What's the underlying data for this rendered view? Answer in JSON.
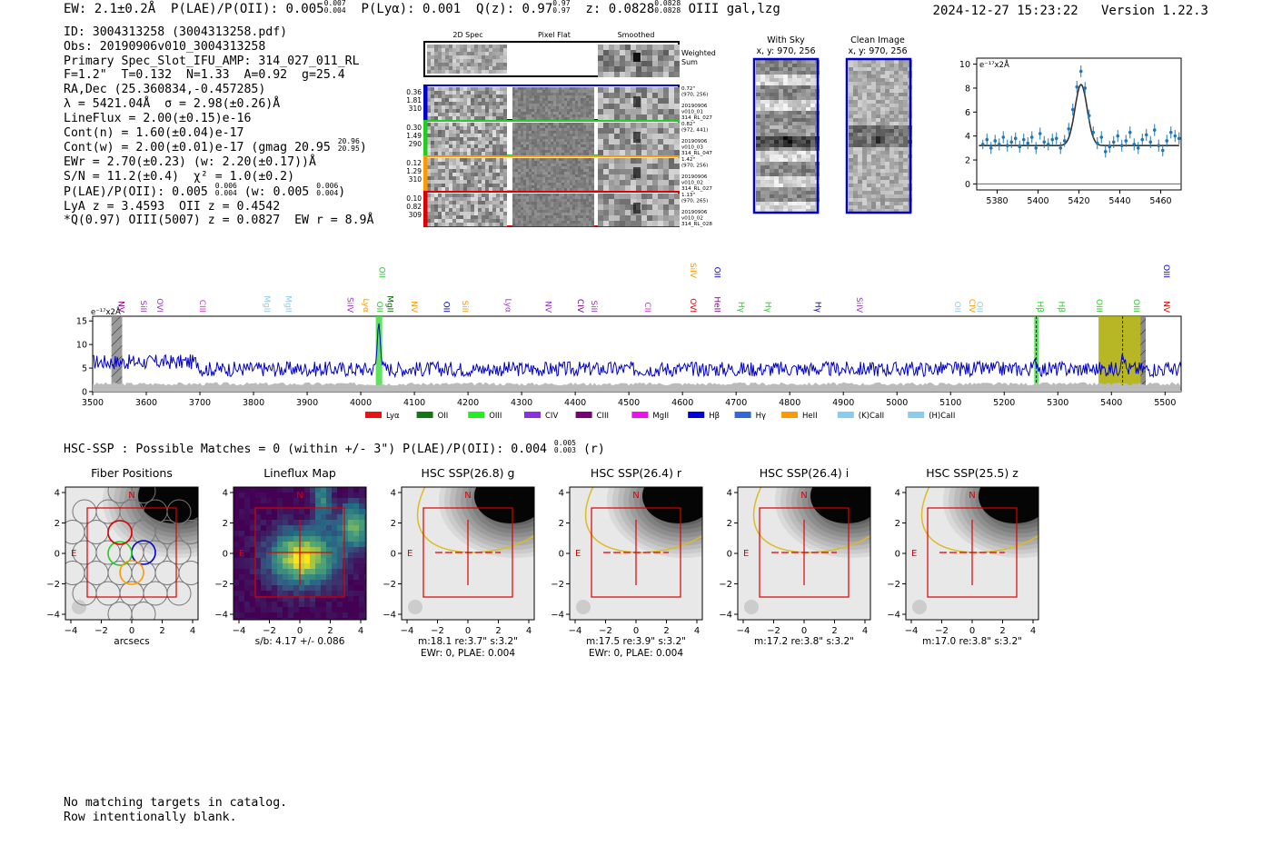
{
  "header": {
    "ew": "EW: 2.1±0.2Å",
    "plae_label": "P(LAE)/P(OII): 0.005",
    "plae_sup": "0.007",
    "plae_sub": "0.004",
    "plya": "P(Lyα): 0.001",
    "q_label": "Q(z): 0.97",
    "q_sup": "0.97",
    "q_sub": "0.97",
    "z_label": "z: 0.0828",
    "z_sup": "0.0828",
    "z_sub": "0.0828",
    "z_tail": "OIII  gal,lzg",
    "timestamp": "2024-12-27 15:23:22",
    "version": "Version 1.22.3"
  },
  "info": {
    "id": "ID: 3004313258 (3004313258.pdf)",
    "obs": "Obs: 20190906v010_3004313258",
    "primary": "Primary Spec_Slot_IFU_AMP: 314_027_011_RL",
    "fiber": "F=1.2\"  T=0.132  N=1.33  A=0.92  g=25.4",
    "radec": "RA,Dec (25.360834,-0.457285)",
    "lambda": "λ = 5421.04Å  σ = 2.98(±0.26)Å",
    "lineflux": "LineFlux = 2.00(±0.15)e-16",
    "contn": "Cont(n) = 1.60(±0.04)e-17",
    "contw": "Cont(w) = 2.00(±0.01)e-17 (gmag 20.95",
    "contw_sup": "20.96",
    "contw_sub": "20.95",
    "contw_tail": ")",
    "ewr": "EWr = 2.70(±0.23) (w: 2.20(±0.17))Å",
    "sn": "S/N = 11.2(±0.4)  χ² = 1.0(±0.2)",
    "plae": "P(LAE)/P(OII): 0.005",
    "plae_sup": "0.006",
    "plae_sub": "0.004",
    "plae_w": " (w: 0.005",
    "plae_w_sup": "0.006",
    "plae_w_sub": "0.004",
    "plae_tail": ")",
    "lya": "LyA z = 3.4593  OII z = 0.4542",
    "q": "*Q(0.97) OIII(5007) z = 0.0827  EW r = 8.9Å"
  },
  "cutouts": {
    "col_headers": [
      "2D Spec",
      "Pixel Flat",
      "Smoothed"
    ],
    "weighted_label_1": "Weighted",
    "weighted_label_2": "Sum",
    "rows": [
      {
        "color": "#0000cc",
        "left": [
          "0.36",
          "1.81",
          "310"
        ],
        "right": [
          "0.72\"",
          "(970, 256)",
          "",
          "20190906",
          "v010_01",
          "314_RL_027"
        ]
      },
      {
        "color": "#22cc22",
        "left": [
          "0.30",
          "1.49",
          "290"
        ],
        "right": [
          "0.82\"",
          "(972, 441)",
          "",
          "20190906",
          "v010_03",
          "314_RL_047"
        ]
      },
      {
        "color": "#ff9900",
        "left": [
          "0.12",
          "1.29",
          "310"
        ],
        "right": [
          "1.42\"",
          "(970, 256)",
          "",
          "20190906",
          "v010_02",
          "314_RL_027"
        ]
      },
      {
        "color": "#dd0000",
        "left": [
          "0.10",
          "0.82",
          "309"
        ],
        "right": [
          "1.13\"",
          "(970, 265)",
          "",
          "20190906",
          "v010_02",
          "314_RL_028"
        ]
      }
    ],
    "with_sky_title": "With Sky",
    "with_sky_coords": "x, y: 970, 256",
    "clean_title": "Clean Image",
    "clean_coords": "x, y: 970, 256"
  },
  "chart_data": [
    {
      "type": "scatter",
      "ylabel_unit": "e⁻¹⁷x2Å",
      "xlim": [
        5370,
        5470
      ],
      "ylim": [
        -0.5,
        10.5
      ],
      "x_ticks": [
        5380,
        5400,
        5420,
        5440,
        5460
      ],
      "y_ticks": [
        0,
        2,
        4,
        6,
        8,
        10
      ],
      "point_color": "#1f77b4",
      "fit_color": "#333333",
      "fit": {
        "center": 5421.04,
        "sigma": 2.98,
        "amplitude": 5.1,
        "continuum": 3.2
      },
      "points": [
        [
          5373,
          3.3,
          0.4
        ],
        [
          5375,
          3.7,
          0.5
        ],
        [
          5377,
          3.0,
          0.5
        ],
        [
          5379,
          3.6,
          0.5
        ],
        [
          5381,
          3.3,
          0.5
        ],
        [
          5383,
          3.9,
          0.5
        ],
        [
          5385,
          3.2,
          0.5
        ],
        [
          5387,
          3.5,
          0.5
        ],
        [
          5389,
          3.8,
          0.5
        ],
        [
          5391,
          3.1,
          0.5
        ],
        [
          5393,
          3.7,
          0.5
        ],
        [
          5395,
          3.4,
          0.5
        ],
        [
          5397,
          3.9,
          0.5
        ],
        [
          5399,
          3.0,
          0.5
        ],
        [
          5401,
          4.2,
          0.5
        ],
        [
          5403,
          3.5,
          0.5
        ],
        [
          5405,
          3.3,
          0.5
        ],
        [
          5407,
          3.7,
          0.5
        ],
        [
          5409,
          3.8,
          0.5
        ],
        [
          5411,
          3.0,
          0.5
        ],
        [
          5413,
          3.6,
          0.5
        ],
        [
          5415,
          4.6,
          0.5
        ],
        [
          5417,
          6.2,
          0.5
        ],
        [
          5419,
          8.1,
          0.5
        ],
        [
          5421,
          9.4,
          0.5
        ],
        [
          5423,
          8.0,
          0.5
        ],
        [
          5425,
          5.7,
          0.5
        ],
        [
          5427,
          4.3,
          0.5
        ],
        [
          5429,
          3.4,
          0.5
        ],
        [
          5431,
          3.9,
          0.5
        ],
        [
          5433,
          2.7,
          0.5
        ],
        [
          5435,
          3.1,
          0.5
        ],
        [
          5437,
          3.5,
          0.5
        ],
        [
          5439,
          4.0,
          0.5
        ],
        [
          5441,
          3.2,
          0.5
        ],
        [
          5443,
          3.6,
          0.5
        ],
        [
          5445,
          4.3,
          0.5
        ],
        [
          5447,
          3.3,
          0.5
        ],
        [
          5449,
          3.0,
          0.5
        ],
        [
          5451,
          3.7,
          0.5
        ],
        [
          5453,
          4.1,
          0.5
        ],
        [
          5455,
          3.5,
          0.5
        ],
        [
          5457,
          4.5,
          0.5
        ],
        [
          5459,
          3.2,
          0.5
        ],
        [
          5461,
          2.8,
          0.5
        ],
        [
          5463,
          3.6,
          0.5
        ],
        [
          5465,
          4.3,
          0.5
        ],
        [
          5467,
          4.0,
          0.5
        ],
        [
          5469,
          3.8,
          0.5
        ]
      ]
    },
    {
      "type": "line",
      "ylabel_unit": "e⁻¹⁷x2Å",
      "xlim": [
        3500,
        5530
      ],
      "ylim": [
        0,
        16
      ],
      "x_ticks": [
        3500,
        3600,
        3700,
        3800,
        3900,
        4000,
        4100,
        4200,
        4300,
        4400,
        4500,
        4600,
        4700,
        4800,
        4900,
        5000,
        5100,
        5200,
        5300,
        5400,
        5500
      ],
      "y_ticks": [
        0,
        5,
        10,
        15
      ],
      "series_color": "#0000cc",
      "sky_color": "#bbbbbb",
      "continuum_level": 4.8,
      "emission_peaks": [
        [
          4034,
          15.0,
          3
        ],
        [
          5260,
          6.5,
          3
        ],
        [
          5421,
          9.0,
          3
        ]
      ],
      "shaded_regions": [
        {
          "x0": 3535,
          "x1": 3555,
          "color": "#888888",
          "hatch": true
        },
        {
          "x0": 4028,
          "x1": 4040,
          "color": "#44dd44",
          "hatch": false
        },
        {
          "x0": 5256,
          "x1": 5264,
          "color": "#44dd44",
          "hatch": false
        },
        {
          "x0": 5376,
          "x1": 5454,
          "color": "#aaaa00",
          "hatch": false
        },
        {
          "x0": 5454,
          "x1": 5464,
          "color": "#777777",
          "hatch": true
        }
      ],
      "line_labels": [
        {
          "x": 3548,
          "text": "NV",
          "color": "#800080",
          "row": 0
        },
        {
          "x": 3590,
          "text": "SiII",
          "color": "#9933cc",
          "row": 0
        },
        {
          "x": 3620,
          "text": "OVI",
          "color": "#9933cc",
          "row": 0
        },
        {
          "x": 3700,
          "text": "CIII",
          "color": "#cc33cc",
          "row": 0
        },
        {
          "x": 3820,
          "text": "MgII",
          "color": "#88ccee",
          "row": 0
        },
        {
          "x": 3860,
          "text": "MgII",
          "color": "#88ccee",
          "row": 0
        },
        {
          "x": 3975,
          "text": "SiIV",
          "color": "#9933cc",
          "row": 0
        },
        {
          "x": 4005,
          "text": "Lyα",
          "color": "#ff9900",
          "row": 0
        },
        {
          "x": 4030,
          "text": "OII",
          "color": "#22cc22",
          "row": 0
        },
        {
          "x": 4050,
          "text": "MgII",
          "color": "#006600",
          "row": 0
        },
        {
          "x": 4035,
          "text": "OII",
          "color": "#22cc22",
          "row": 1
        },
        {
          "x": 4095,
          "text": "NV",
          "color": "#ff9900",
          "row": 0
        },
        {
          "x": 4155,
          "text": "OII",
          "color": "#0000cc",
          "row": 0
        },
        {
          "x": 4190,
          "text": "SiII",
          "color": "#ff9900",
          "row": 0
        },
        {
          "x": 4270,
          "text": "Lyα",
          "color": "#9933cc",
          "row": 0
        },
        {
          "x": 4345,
          "text": "NV",
          "color": "#9933cc",
          "row": 0
        },
        {
          "x": 4405,
          "text": "CIV",
          "color": "#800080",
          "row": 0
        },
        {
          "x": 4430,
          "text": "SiII",
          "color": "#9933cc",
          "row": 0
        },
        {
          "x": 4530,
          "text": "CII",
          "color": "#cc33cc",
          "row": 0
        },
        {
          "x": 4615,
          "text": "OVI",
          "color": "#dd0000",
          "row": 0
        },
        {
          "x": 4615,
          "text": "SiIV",
          "color": "#ff9900",
          "row": 1
        },
        {
          "x": 4660,
          "text": "HeII",
          "color": "#800080",
          "row": 0
        },
        {
          "x": 4660,
          "text": "OII",
          "color": "#0000cc",
          "row": 1
        },
        {
          "x": 4705,
          "text": "Hγ",
          "color": "#22cc22",
          "row": 0
        },
        {
          "x": 4755,
          "text": "Hγ",
          "color": "#22cc22",
          "row": 0
        },
        {
          "x": 4848,
          "text": "Hγ",
          "color": "#0000cc",
          "row": 0
        },
        {
          "x": 4925,
          "text": "SiIV",
          "color": "#9933cc",
          "row": 0
        },
        {
          "x": 5108,
          "text": "OII",
          "color": "#88ccee",
          "row": 0
        },
        {
          "x": 5135,
          "text": "CIV",
          "color": "#ff9900",
          "row": 0
        },
        {
          "x": 5150,
          "text": "OII",
          "color": "#88ccee",
          "row": 0
        },
        {
          "x": 5262,
          "text": "Hβ",
          "color": "#22cc22",
          "row": 0
        },
        {
          "x": 5302,
          "text": "Hβ",
          "color": "#22cc22",
          "row": 0
        },
        {
          "x": 5372,
          "text": "OIII",
          "color": "#22cc22",
          "row": 0
        },
        {
          "x": 5442,
          "text": "OIII",
          "color": "#22cc22",
          "row": 0
        },
        {
          "x": 5498,
          "text": "NV",
          "color": "#dd0000",
          "row": 0
        },
        {
          "x": 5498,
          "text": "OIII",
          "color": "#0000cc",
          "row": 1
        }
      ],
      "legend": [
        {
          "label": "Lyα",
          "color": "#ee1111"
        },
        {
          "label": "OII",
          "color": "#117711"
        },
        {
          "label": "OIII",
          "color": "#22ee22"
        },
        {
          "label": "CIV",
          "color": "#8833dd"
        },
        {
          "label": "CIII",
          "color": "#770077"
        },
        {
          "label": "MgII",
          "color": "#ee11ee"
        },
        {
          "label": "Hβ",
          "color": "#0000dd"
        },
        {
          "label": "Hγ",
          "color": "#3366dd"
        },
        {
          "label": "HeII",
          "color": "#ff9900"
        },
        {
          "label": "(K)CaII",
          "color": "#88ccee"
        },
        {
          "label": "(H)CaII",
          "color": "#88ccee"
        }
      ]
    }
  ],
  "hsc": {
    "title_main": "HSC-SSP : Possible Matches = 0 (within +/- 3\")  P(LAE)/P(OII): 0.004",
    "title_sup": "0.005",
    "title_sub": "0.003",
    "title_tail": " (r)",
    "panels": [
      {
        "title": "Fiber Positions",
        "kind": "fiber",
        "caption1": "arcsecs",
        "caption2": ""
      },
      {
        "title": "Lineflux Map",
        "kind": "lineflux",
        "caption1": "s/b: 4.17 +/- 0.086",
        "caption2": ""
      },
      {
        "title": "HSC SSP(26.8) g",
        "kind": "hsc",
        "caption1": "m:18.1  re:3.7\"  s:3.2\"",
        "caption2": "EWr: 0, PLAE: 0.004"
      },
      {
        "title": "HSC SSP(26.4) r",
        "kind": "hsc",
        "caption1": "m:17.5  re:3.9\"  s:3.2\"",
        "caption2": "EWr: 0, PLAE: 0.004"
      },
      {
        "title": "HSC SSP(26.4) i",
        "kind": "hsc",
        "caption1": "m:17.2  re:3.8\"  s:3.2\"",
        "caption2": ""
      },
      {
        "title": "HSC SSP(25.5) z",
        "kind": "hsc",
        "caption1": "m:17.0  re:3.8\"  s:3.2\"",
        "caption2": ""
      }
    ],
    "axis_ticks": [
      "−4",
      "−2",
      "0",
      "2",
      "4"
    ],
    "north_label": "N",
    "east_label": "E"
  },
  "footer": {
    "line1": "No matching targets in catalog.",
    "line2": "Row intentionally blank."
  }
}
